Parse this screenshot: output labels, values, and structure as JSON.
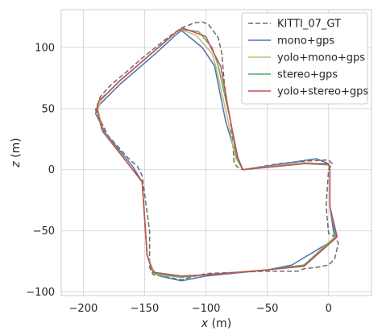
{
  "chart_data": {
    "type": "line",
    "title": "",
    "xlabel_prefix": "x",
    "xlabel_unit": " (m)",
    "ylabel_prefix": "z",
    "ylabel_unit": " (m)",
    "xlim": [
      -218,
      35
    ],
    "ylim": [
      -103,
      131
    ],
    "xticks": [
      -200,
      -150,
      -100,
      -50,
      0
    ],
    "yticks": [
      -100,
      -50,
      0,
      50,
      100
    ],
    "grid": true,
    "legend_position": "top-right",
    "series": [
      {
        "name": "KITTI_07_GT",
        "color": "#6b6b6b",
        "dash": true,
        "x": [
          -70,
          -40,
          -20,
          0,
          3,
          0,
          -2,
          0,
          5,
          8,
          5,
          0,
          -10,
          -20,
          -25,
          -50,
          -100,
          -120,
          -143,
          -146,
          -146,
          -150,
          -152,
          -156,
          -162,
          -180,
          -190,
          -186,
          -178,
          -165,
          -150,
          -140,
          -130,
          -120,
          -110,
          -103,
          -98,
          -95,
          -90,
          -87,
          -85,
          -82,
          -80,
          -78,
          -77,
          -73,
          -70
        ],
        "y": [
          0,
          5,
          7,
          8,
          5,
          0,
          -30,
          -52,
          -55,
          -60,
          -73,
          -78,
          -80,
          -81,
          -83,
          -83,
          -85,
          -90,
          -86,
          -80,
          -50,
          -20,
          -5,
          3,
          8,
          28,
          49,
          60,
          69,
          80,
          93,
          101,
          109,
          116,
          120,
          121,
          119,
          115,
          108,
          95,
          70,
          50,
          40,
          20,
          5,
          1,
          0
        ]
      },
      {
        "name": "mono+gps",
        "color": "#4c72b0",
        "dash": false,
        "x": [
          -70,
          -10,
          0,
          1,
          1,
          5,
          -30,
          -50,
          -100,
          -120,
          -138,
          -143,
          -148,
          -152,
          -160,
          -182,
          -190,
          -188,
          -180,
          -170,
          -155,
          -140,
          -125,
          -120,
          -103,
          -93,
          -84,
          -78,
          -70
        ],
        "y": [
          0,
          9,
          5,
          0,
          -30,
          -57,
          -78,
          -82,
          -87,
          -91,
          -87,
          -84,
          -70,
          -10,
          3,
          30,
          46,
          52,
          60,
          70,
          83,
          96,
          110,
          114,
          100,
          85,
          40,
          20,
          0
        ]
      },
      {
        "name": "yolo+mono+gps",
        "color": "#dd8452",
        "dash": false,
        "x": [
          -70,
          -20,
          0,
          1,
          1,
          6,
          -20,
          -50,
          -100,
          -120,
          -140,
          -143,
          -148,
          -152,
          -162,
          -184,
          -188,
          -186,
          -180,
          -170,
          -155,
          -140,
          -125,
          -121,
          -108,
          -95,
          -92,
          -82,
          -76,
          -70
        ],
        "y": [
          0,
          6,
          4,
          0,
          -30,
          -54,
          -78,
          -82,
          -86,
          -88,
          -86,
          -82,
          -70,
          -10,
          3,
          32,
          49,
          56,
          63,
          73,
          86,
          99,
          112,
          115,
          110,
          95,
          85,
          40,
          10,
          0
        ],
        "color_override": "#ccb974"
      },
      {
        "name": "stereo+gps",
        "color": "#55a868",
        "dash": false,
        "x": [
          -70,
          -20,
          0,
          1,
          1,
          6,
          -20,
          -50,
          -100,
          -120,
          -142,
          -144,
          -148,
          -152,
          -162,
          -185,
          -189,
          -187,
          -180,
          -170,
          -155,
          -140,
          -125,
          -121,
          -106,
          -95,
          -90,
          -80,
          -75,
          -70
        ],
        "y": [
          0,
          5,
          4,
          0,
          -30,
          -55,
          -78,
          -82,
          -86,
          -88,
          -85,
          -82,
          -70,
          -10,
          3,
          33,
          50,
          57,
          63,
          73,
          86,
          99,
          112,
          115,
          113,
          100,
          85,
          40,
          10,
          0
        ]
      },
      {
        "name": "yolo+stereo+gps",
        "color": "#c44e52",
        "dash": false,
        "x": [
          -70,
          -20,
          0,
          1,
          1,
          7,
          -20,
          -50,
          -100,
          -120,
          -142,
          -144,
          -148,
          -152,
          -162,
          -184,
          -189,
          -187,
          -180,
          -170,
          -155,
          -140,
          -125,
          -119,
          -100,
          -96,
          -88,
          -80,
          -74,
          -70
        ],
        "y": [
          0,
          5,
          5,
          0,
          -30,
          -55,
          -79,
          -82,
          -86,
          -87,
          -84,
          -82,
          -70,
          -10,
          3,
          31,
          50,
          57,
          63,
          73,
          86,
          99,
          112,
          116,
          109,
          100,
          85,
          40,
          10,
          0
        ]
      }
    ]
  }
}
